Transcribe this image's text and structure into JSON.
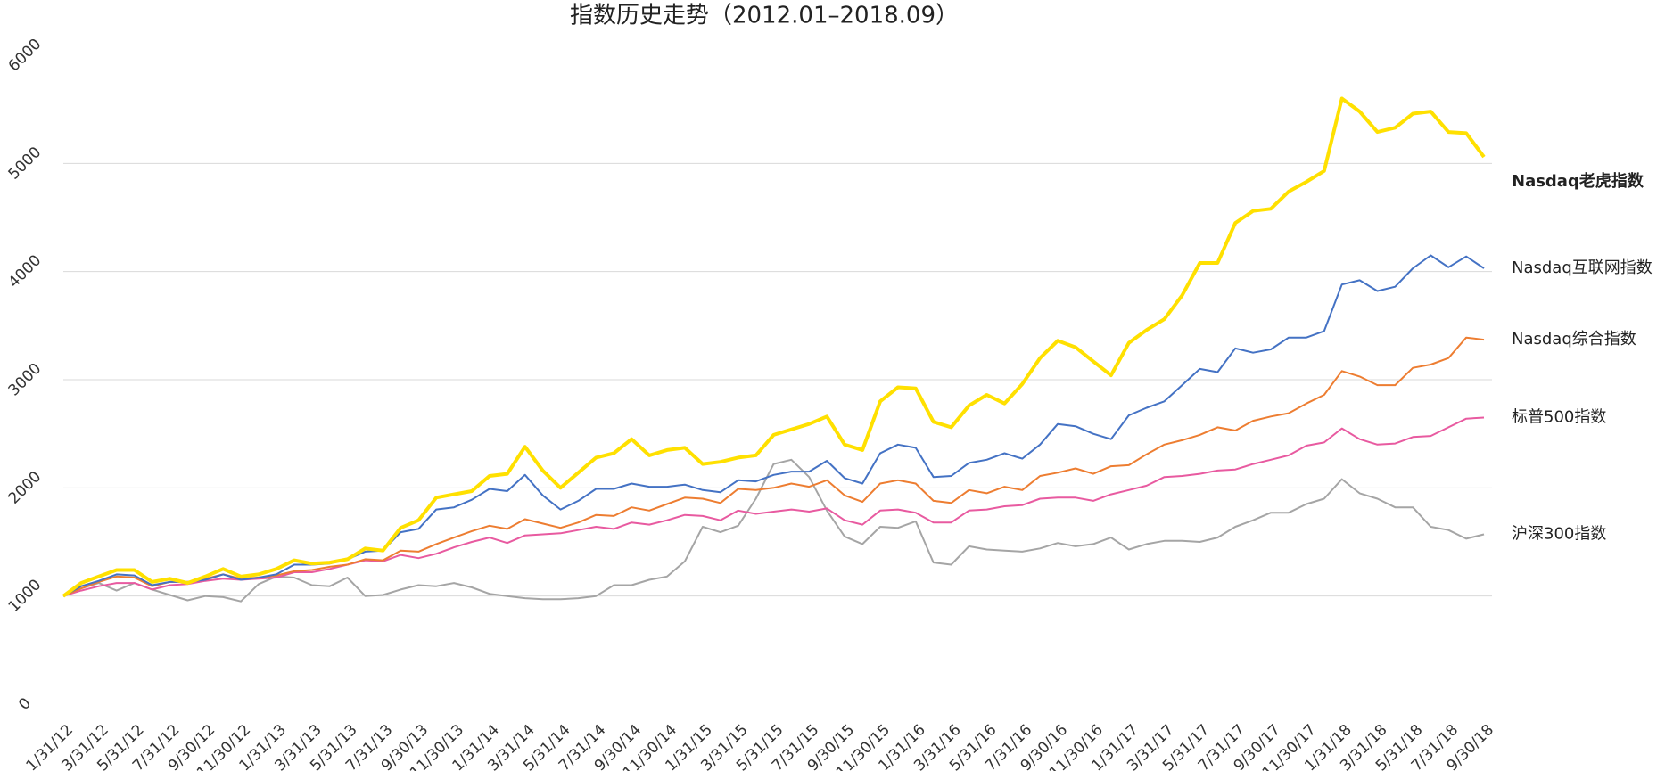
{
  "chart_data": {
    "type": "line",
    "title": "指数历史走势（2012.01–2018.09）",
    "categories": [
      "1/31/12",
      null,
      "3/31/12",
      null,
      "5/31/12",
      null,
      "7/31/12",
      null,
      "9/30/12",
      null,
      "11/30/12",
      null,
      "1/31/13",
      null,
      "3/31/13",
      null,
      "5/31/13",
      null,
      "7/31/13",
      null,
      "9/30/13",
      null,
      "11/30/13",
      null,
      "1/31/14",
      null,
      "3/31/14",
      null,
      "5/31/14",
      null,
      "7/31/14",
      null,
      "9/30/14",
      null,
      "11/30/14",
      null,
      "1/31/15",
      null,
      "3/31/15",
      null,
      "5/31/15",
      null,
      "7/31/15",
      null,
      "9/30/15",
      null,
      "11/30/15",
      null,
      "1/31/16",
      null,
      "3/31/16",
      null,
      "5/31/16",
      null,
      "7/31/16",
      null,
      "9/30/16",
      null,
      "11/30/16",
      null,
      "1/31/17",
      null,
      "3/31/17",
      null,
      "5/31/17",
      null,
      "7/31/17",
      null,
      "9/30/17",
      null,
      "11/30/17",
      null,
      "1/31/18",
      null,
      "3/31/18",
      null,
      "5/31/18",
      null,
      "7/31/18",
      null,
      "9/30/18"
    ],
    "series": [
      {
        "name": "Nasdaq老虎指数",
        "color": "#ffe000",
        "width": 4,
        "values": [
          1000,
          1120,
          1180,
          1240,
          1240,
          1130,
          1160,
          1120,
          1180,
          1250,
          1180,
          1200,
          1250,
          1330,
          1300,
          1310,
          1340,
          1440,
          1420,
          1630,
          1700,
          1910,
          1940,
          1970,
          2110,
          2130,
          2380,
          2160,
          2000,
          2140,
          2280,
          2320,
          2450,
          2300,
          2350,
          2370,
          2220,
          2240,
          2280,
          2300,
          2490,
          2540,
          2590,
          2660,
          2400,
          2350,
          2800,
          2930,
          2920,
          2610,
          2560,
          2760,
          2860,
          2780,
          2960,
          3200,
          3360,
          3300,
          3170,
          3040,
          3340,
          3460,
          3560,
          3780,
          4080,
          4080,
          4450,
          4560,
          4580,
          4740,
          4830,
          4930,
          5600,
          5480,
          5290,
          5330,
          5460,
          5480,
          5290,
          5280,
          5060
        ]
      },
      {
        "name": "Nasdaq互联网指数",
        "color": "#4472c4",
        "width": 2,
        "values": [
          1000,
          1090,
          1140,
          1200,
          1190,
          1100,
          1130,
          1130,
          1150,
          1200,
          1150,
          1170,
          1200,
          1290,
          1290,
          1300,
          1340,
          1410,
          1420,
          1590,
          1620,
          1800,
          1820,
          1890,
          1990,
          1970,
          2120,
          1930,
          1800,
          1880,
          1990,
          1990,
          2040,
          2010,
          2010,
          2030,
          1980,
          1960,
          2070,
          2060,
          2120,
          2150,
          2150,
          2250,
          2090,
          2040,
          2320,
          2400,
          2370,
          2100,
          2110,
          2230,
          2260,
          2320,
          2270,
          2400,
          2590,
          2570,
          2500,
          2450,
          2670,
          2740,
          2800,
          2950,
          3100,
          3070,
          3290,
          3250,
          3280,
          3390,
          3390,
          3450,
          3880,
          3920,
          3820,
          3860,
          4030,
          4150,
          4040,
          4140,
          4030
        ]
      },
      {
        "name": "Nasdaq综合指数",
        "color": "#ed7d31",
        "width": 2,
        "values": [
          1000,
          1070,
          1130,
          1180,
          1170,
          1090,
          1130,
          1130,
          1160,
          1200,
          1160,
          1170,
          1190,
          1230,
          1240,
          1270,
          1290,
          1340,
          1330,
          1420,
          1410,
          1480,
          1540,
          1600,
          1650,
          1620,
          1710,
          1670,
          1630,
          1680,
          1750,
          1740,
          1820,
          1790,
          1850,
          1910,
          1900,
          1860,
          1990,
          1980,
          2000,
          2040,
          2010,
          2070,
          1930,
          1870,
          2040,
          2070,
          2040,
          1880,
          1860,
          1980,
          1950,
          2010,
          1980,
          2110,
          2140,
          2180,
          2130,
          2200,
          2210,
          2310,
          2400,
          2440,
          2490,
          2560,
          2530,
          2620,
          2660,
          2690,
          2780,
          2860,
          3080,
          3030,
          2950,
          2950,
          3110,
          3140,
          3200,
          3390,
          3370
        ]
      },
      {
        "name": "标普500指数",
        "color": "#e85aa0",
        "width": 2,
        "values": [
          1000,
          1050,
          1090,
          1120,
          1120,
          1060,
          1100,
          1110,
          1140,
          1160,
          1150,
          1160,
          1170,
          1220,
          1220,
          1250,
          1290,
          1330,
          1320,
          1380,
          1350,
          1390,
          1450,
          1500,
          1540,
          1490,
          1560,
          1570,
          1580,
          1610,
          1640,
          1620,
          1680,
          1660,
          1700,
          1750,
          1740,
          1700,
          1790,
          1760,
          1780,
          1800,
          1780,
          1810,
          1700,
          1660,
          1790,
          1800,
          1770,
          1680,
          1680,
          1790,
          1800,
          1830,
          1840,
          1900,
          1910,
          1910,
          1880,
          1940,
          1980,
          2020,
          2100,
          2110,
          2130,
          2160,
          2170,
          2220,
          2260,
          2300,
          2390,
          2420,
          2550,
          2450,
          2400,
          2410,
          2470,
          2480,
          2560,
          2640,
          2650
        ]
      },
      {
        "name": "沪深300指数",
        "color": "#a5a5a5",
        "width": 2,
        "values": [
          1000,
          1070,
          1120,
          1050,
          1120,
          1060,
          1010,
          960,
          1000,
          990,
          950,
          1110,
          1180,
          1170,
          1100,
          1090,
          1170,
          1000,
          1010,
          1060,
          1100,
          1090,
          1120,
          1080,
          1020,
          1000,
          980,
          970,
          970,
          980,
          1000,
          1100,
          1100,
          1150,
          1180,
          1320,
          1640,
          1590,
          1650,
          1900,
          2220,
          2260,
          2100,
          1790,
          1550,
          1480,
          1640,
          1630,
          1690,
          1310,
          1290,
          1460,
          1430,
          1420,
          1410,
          1440,
          1490,
          1460,
          1480,
          1540,
          1430,
          1480,
          1510,
          1510,
          1500,
          1540,
          1640,
          1700,
          1770,
          1770,
          1850,
          1900,
          2080,
          1950,
          1900,
          1820,
          1820,
          1640,
          1610,
          1530,
          1570
        ]
      }
    ],
    "ylim": [
      0,
      6000
    ],
    "yticks": [
      0,
      1000,
      2000,
      3000,
      4000,
      5000,
      6000
    ],
    "grid": true
  }
}
